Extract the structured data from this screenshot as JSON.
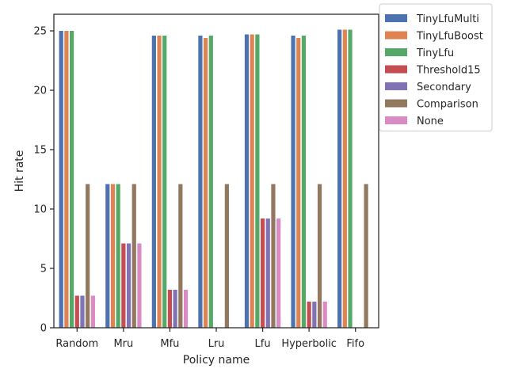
{
  "chart_data": {
    "type": "bar",
    "xlabel": "Policy name",
    "ylabel": "Hit rate",
    "categories": [
      "Random",
      "Mru",
      "Mfu",
      "Lru",
      "Lfu",
      "Hyperbolic",
      "Fifo"
    ],
    "ylim": [
      0,
      26.4
    ],
    "yticks": [
      0,
      5,
      10,
      15,
      20,
      25
    ],
    "grid": false,
    "legend_position": "outside top-right",
    "series": [
      {
        "name": "TinyLfuMulti",
        "color": "#4c72b0",
        "values": [
          25.0,
          12.1,
          24.6,
          24.6,
          24.7,
          24.6,
          25.1
        ]
      },
      {
        "name": "TinyLfuBoost",
        "color": "#dd8452",
        "values": [
          25.0,
          12.1,
          24.6,
          24.4,
          24.7,
          24.4,
          25.1
        ]
      },
      {
        "name": "TinyLfu",
        "color": "#55a868",
        "values": [
          25.0,
          12.1,
          24.6,
          24.6,
          24.7,
          24.6,
          25.1
        ]
      },
      {
        "name": "Threshold15",
        "color": "#c44e52",
        "values": [
          2.7,
          7.1,
          3.2,
          null,
          9.2,
          2.2,
          null
        ]
      },
      {
        "name": "Secondary",
        "color": "#8172b3",
        "values": [
          2.7,
          7.1,
          3.2,
          null,
          9.2,
          2.2,
          null
        ]
      },
      {
        "name": "Comparison",
        "color": "#937860",
        "values": [
          12.1,
          12.1,
          12.1,
          12.1,
          12.1,
          12.1,
          12.1
        ]
      },
      {
        "name": "None",
        "color": "#da8bc3",
        "values": [
          2.7,
          7.1,
          3.2,
          null,
          9.2,
          2.2,
          null
        ]
      }
    ]
  }
}
